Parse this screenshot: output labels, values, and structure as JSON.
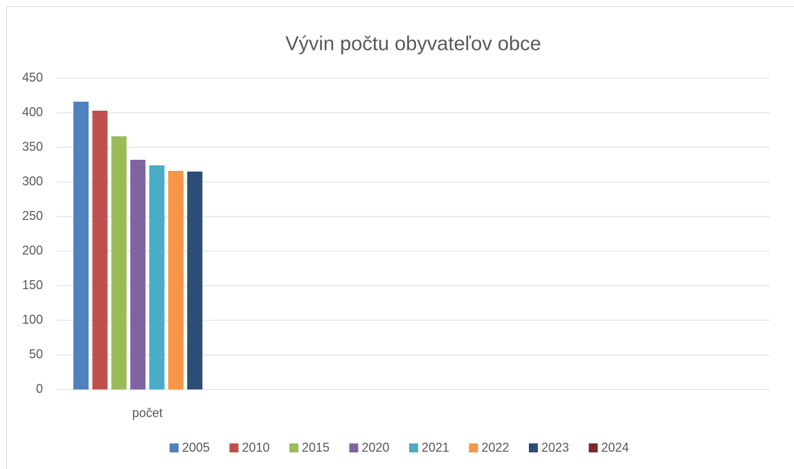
{
  "chart_data": {
    "type": "bar",
    "title": "Vývin počtu obyvateľov obce",
    "categories": [
      "počet"
    ],
    "series": [
      {
        "name": "2005",
        "color": "#4f81bd",
        "values": [
          416
        ]
      },
      {
        "name": "2010",
        "color": "#c0504d",
        "values": [
          403
        ]
      },
      {
        "name": "2015",
        "color": "#9bbb59",
        "values": [
          366
        ]
      },
      {
        "name": "2020",
        "color": "#8064a2",
        "values": [
          332
        ]
      },
      {
        "name": "2021",
        "color": "#4bacc6",
        "values": [
          324
        ]
      },
      {
        "name": "2022",
        "color": "#f79646",
        "values": [
          316
        ]
      },
      {
        "name": "2023",
        "color": "#2c4d75",
        "values": [
          315
        ]
      },
      {
        "name": "2024",
        "color": "#772c2a",
        "values": [
          null
        ]
      }
    ],
    "ylim": [
      0,
      450
    ],
    "yticks": [
      0,
      50,
      100,
      150,
      200,
      250,
      300,
      350,
      400,
      450
    ],
    "grid": true,
    "legend": "bottom"
  }
}
